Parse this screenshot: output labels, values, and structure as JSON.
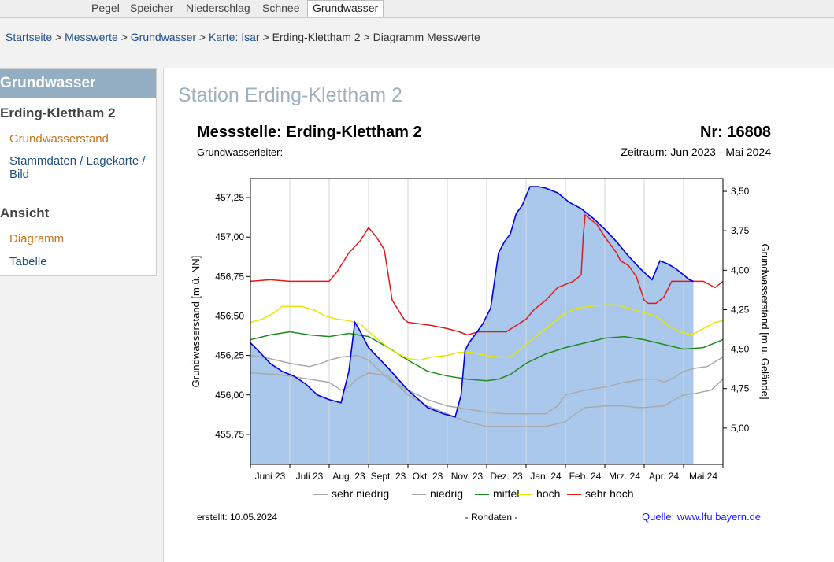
{
  "topnav": {
    "tabs": [
      {
        "label": "Pegel",
        "active": false
      },
      {
        "label": "Speicher",
        "active": false
      },
      {
        "label": "Niederschlag",
        "active": false
      },
      {
        "label": "Schnee",
        "active": false
      },
      {
        "label": "Grundwasser",
        "active": true
      }
    ]
  },
  "breadcrumb": {
    "items": [
      {
        "label": "Startseite",
        "link": true
      },
      {
        "label": "Messwerte",
        "link": true
      },
      {
        "label": "Grundwasser",
        "link": true
      },
      {
        "label": "Karte: Isar",
        "link": true
      },
      {
        "label": "Erding-Klettham 2",
        "link": false
      },
      {
        "label": "Diagramm Messwerte",
        "link": false
      }
    ],
    "separator": ">"
  },
  "sidebar": {
    "header": "Grundwasser",
    "station": "Erding-Klettham 2",
    "links": [
      {
        "label": "Grundwasserstand",
        "active": true
      },
      {
        "label": "Stammdaten / Lagekarte / Bild",
        "active": false
      }
    ],
    "section": "Ansicht",
    "view_links": [
      {
        "label": "Diagramm",
        "active": true
      },
      {
        "label": "Tabelle",
        "active": false
      }
    ]
  },
  "main": {
    "title": "Station Erding-Klettham 2"
  },
  "chart_data": {
    "type": "area",
    "title": "Messstelle: Erding-Klettham 2",
    "number": "Nr: 16808",
    "subtitle_left": "Grundwasserleiter:",
    "period": "Zeitraum: Jun 2023 - Mai 2024",
    "ylabel": "Grundwasserstand [m ü. NN]",
    "ylabel_right": "Grundwasserstand [m u. Gelände]",
    "ylim": [
      455.56,
      457.37
    ],
    "yticks": [
      "457,25",
      "457,00",
      "456,75",
      "456,50",
      "456,25",
      "456,00",
      "455,75"
    ],
    "ytick_values": [
      457.25,
      457.0,
      456.75,
      456.5,
      456.25,
      456.0,
      455.75
    ],
    "yticks_right": [
      "3,50",
      "3,75",
      "4,00",
      "4,25",
      "4,50",
      "4,75",
      "5,00"
    ],
    "yticks_right_values": [
      3.5,
      3.75,
      4.0,
      4.25,
      4.5,
      4.75,
      5.0
    ],
    "right_axis_offset": 460.79,
    "xlim": [
      0,
      12
    ],
    "x_tick_labels": [
      "Juni 23",
      "Juli 23",
      "Aug. 23",
      "Sept. 23",
      "Okt. 23",
      "Nov. 23",
      "Dez. 23",
      "Jan. 24",
      "Feb. 24",
      "Mrz. 24",
      "Apr. 24",
      "Mai 24"
    ],
    "grid": true,
    "legend_position": "bottom",
    "footer_left": "erstellt:  10.05.2024",
    "footer_center": "- Rohdaten -",
    "footer_right": "Quelle:  www.lfu.bayern.de",
    "measured": {
      "color": "#0000e6",
      "fill": "#a9c8ec",
      "x": [
        0,
        0.2,
        0.5,
        0.8,
        1.1,
        1.4,
        1.7,
        2.0,
        2.3,
        2.5,
        2.65,
        2.75,
        3.0,
        3.5,
        4.0,
        4.5,
        4.9,
        5.2,
        5.35,
        5.45,
        5.55,
        5.7,
        5.9,
        6.1,
        6.3,
        6.45,
        6.6,
        6.75,
        6.9,
        7.1,
        7.3,
        7.5,
        7.8,
        8.1,
        8.4,
        8.7,
        9.0,
        9.3,
        9.6,
        9.9,
        10.2,
        10.4,
        10.6,
        10.8,
        11.0,
        11.15,
        11.25
      ],
      "y": [
        456.33,
        456.28,
        456.2,
        456.15,
        456.12,
        456.07,
        456.0,
        455.97,
        455.95,
        456.15,
        456.46,
        456.42,
        456.3,
        456.17,
        456.03,
        455.92,
        455.88,
        455.86,
        456.0,
        456.28,
        456.33,
        456.38,
        456.45,
        456.55,
        456.9,
        456.97,
        457.02,
        457.15,
        457.2,
        457.32,
        457.32,
        457.31,
        457.28,
        457.22,
        457.18,
        457.12,
        457.05,
        456.97,
        456.88,
        456.8,
        456.73,
        456.85,
        456.83,
        456.8,
        456.76,
        456.73,
        456.72
      ]
    },
    "series": [
      {
        "name": "sehr niedrig",
        "color": "#a9a9a9",
        "x": [
          0,
          0.7,
          1.5,
          2.0,
          2.3,
          2.5,
          2.7,
          3.0,
          3.5,
          4.0,
          4.5,
          5.0,
          5.5,
          6.0,
          6.5,
          7.0,
          7.5,
          8.0,
          8.2,
          8.5,
          9.0,
          9.5,
          9.8,
          10.0,
          10.5,
          10.7,
          11.0,
          11.3,
          11.5,
          11.7,
          12
        ],
        "y": [
          456.14,
          456.13,
          456.1,
          456.08,
          456.03,
          456.05,
          456.1,
          456.14,
          456.12,
          456.0,
          455.93,
          455.88,
          455.83,
          455.8,
          455.8,
          455.8,
          455.8,
          455.83,
          455.87,
          455.92,
          455.93,
          455.93,
          455.92,
          455.92,
          455.93,
          455.96,
          456.0,
          456.01,
          456.02,
          456.03,
          456.1
        ]
      },
      {
        "name": "niedrig",
        "color": "#a9a9a9",
        "x": [
          0,
          0.5,
          1.0,
          1.5,
          1.8,
          2.0,
          2.3,
          2.7,
          3.0,
          3.5,
          4.0,
          4.5,
          5.0,
          5.5,
          6.0,
          6.5,
          7.0,
          7.5,
          7.8,
          8.0,
          8.5,
          9.0,
          9.5,
          10.0,
          10.3,
          10.5,
          10.7,
          11.0,
          11.3,
          11.6,
          12
        ],
        "y": [
          456.25,
          456.23,
          456.2,
          456.18,
          456.2,
          456.22,
          456.24,
          456.25,
          456.22,
          456.1,
          456.03,
          455.97,
          455.93,
          455.91,
          455.89,
          455.88,
          455.88,
          455.88,
          455.93,
          456.0,
          456.03,
          456.05,
          456.08,
          456.1,
          456.1,
          456.08,
          456.1,
          456.15,
          456.17,
          456.18,
          456.24
        ]
      },
      {
        "name": "mittel",
        "color": "#1e8c1e",
        "x": [
          0,
          0.5,
          1.0,
          1.5,
          2.0,
          2.5,
          3.0,
          3.5,
          4.0,
          4.5,
          5.0,
          5.5,
          6.0,
          6.3,
          6.6,
          7.0,
          7.5,
          8.0,
          8.5,
          9.0,
          9.5,
          10.0,
          10.5,
          11.0,
          11.5,
          12
        ],
        "y": [
          456.35,
          456.38,
          456.4,
          456.38,
          456.37,
          456.39,
          456.37,
          456.3,
          456.22,
          456.15,
          456.12,
          456.1,
          456.09,
          456.1,
          456.13,
          456.2,
          456.26,
          456.3,
          456.33,
          456.36,
          456.37,
          456.35,
          456.32,
          456.29,
          456.3,
          456.35
        ]
      },
      {
        "name": "hoch",
        "color": "#e6e600",
        "x": [
          0,
          0.3,
          0.6,
          0.8,
          1.0,
          1.3,
          1.6,
          1.9,
          2.2,
          2.5,
          2.8,
          3.0,
          3.3,
          3.6,
          4.0,
          4.3,
          4.6,
          5.0,
          5.3,
          5.6,
          6.0,
          6.3,
          6.6,
          6.9,
          7.2,
          7.5,
          7.8,
          8.0,
          8.3,
          8.6,
          9.0,
          9.3,
          9.6,
          10.0,
          10.3,
          10.6,
          10.9,
          11.2,
          11.5,
          11.8,
          12
        ],
        "y": [
          456.46,
          456.48,
          456.52,
          456.56,
          456.56,
          456.56,
          456.54,
          456.5,
          456.48,
          456.47,
          456.45,
          456.4,
          456.34,
          456.28,
          456.23,
          456.22,
          456.24,
          456.25,
          456.27,
          456.27,
          456.25,
          456.24,
          456.24,
          456.3,
          456.36,
          456.42,
          456.48,
          456.52,
          456.55,
          456.56,
          456.57,
          456.57,
          456.55,
          456.52,
          456.5,
          456.44,
          456.4,
          456.38,
          456.42,
          456.46,
          456.47
        ]
      },
      {
        "name": "sehr hoch",
        "color": "#e01b1b",
        "x": [
          0,
          0.5,
          1.0,
          1.5,
          2.0,
          2.2,
          2.5,
          2.8,
          3.0,
          3.2,
          3.4,
          3.6,
          3.8,
          3.9,
          4.0,
          4.3,
          4.6,
          5.0,
          5.3,
          5.5,
          5.8,
          6.0,
          6.5,
          7.0,
          7.2,
          7.5,
          7.8,
          8.0,
          8.2,
          8.4,
          8.45,
          8.5,
          8.8,
          9.0,
          9.3,
          9.4,
          9.6,
          9.8,
          10.0,
          10.1,
          10.3,
          10.5,
          10.7,
          11.0,
          11.5,
          11.8,
          12
        ],
        "y": [
          456.72,
          456.73,
          456.72,
          456.72,
          456.72,
          456.78,
          456.9,
          456.98,
          457.06,
          457.0,
          456.92,
          456.6,
          456.52,
          456.48,
          456.46,
          456.45,
          456.44,
          456.42,
          456.4,
          456.38,
          456.4,
          456.4,
          456.4,
          456.48,
          456.54,
          456.6,
          456.68,
          456.7,
          456.72,
          456.76,
          457.0,
          457.14,
          457.08,
          457.0,
          456.9,
          456.85,
          456.82,
          456.75,
          456.6,
          456.58,
          456.58,
          456.62,
          456.72,
          456.72,
          456.72,
          456.68,
          456.72
        ]
      }
    ]
  }
}
